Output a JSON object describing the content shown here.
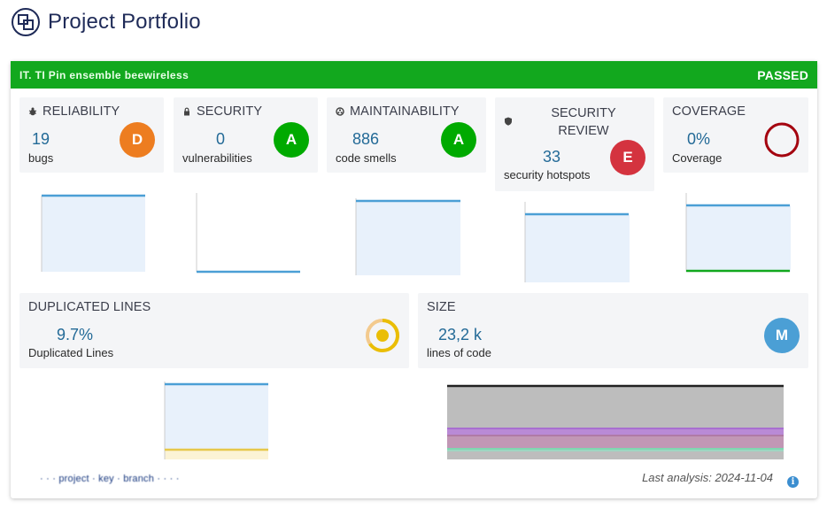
{
  "header": {
    "title": "Project Portfolio",
    "logo_icon": "portfolio-logo-icon"
  },
  "quality_gate": {
    "project_name": "IT. TI Pin ensemble beewireless",
    "status": "PASSED",
    "color": "#12a81e"
  },
  "metrics": {
    "reliability": {
      "title": "RELIABILITY",
      "icon": "bug-icon",
      "value": "19",
      "caption": "bugs",
      "rating": "D",
      "rating_color": "#ed7d20"
    },
    "security": {
      "title": "SECURITY",
      "icon": "lock-icon",
      "value": "0",
      "caption": "vulnerabilities",
      "rating": "A",
      "rating_color": "#00aa00"
    },
    "maintainability": {
      "title": "MAINTAINABILITY",
      "icon": "maintainability-icon",
      "value": "886",
      "caption": "code smells",
      "rating": "A",
      "rating_color": "#00aa00"
    },
    "security_review": {
      "title_line1": "SECURITY",
      "title_line2": "REVIEW",
      "icon": "shield-icon",
      "value": "33",
      "caption": "security hotspots",
      "rating": "E",
      "rating_color": "#d4333f"
    },
    "coverage": {
      "title": "COVERAGE",
      "value": "0%",
      "caption": "Coverage",
      "gauge_color": "#a4030f",
      "gauge_fill": 0
    },
    "duplicated_lines": {
      "title": "DUPLICATED LINES",
      "value": "9.7%",
      "caption": "Duplicated Lines",
      "donut_color": "#eabe06",
      "donut_fill": 0.097
    },
    "size": {
      "title": "SIZE",
      "value": "23,2 k",
      "caption": "lines of code",
      "rating": "M",
      "rating_color": "#4b9fd5"
    }
  },
  "footer": {
    "blurred_link": "· · · project · key · branch · · · ·",
    "last_analysis": "Last analysis: 2024-11-04",
    "info_icon": "info-icon"
  },
  "colors": {
    "accent": "#236a97",
    "chart_line": "#4b9fd5",
    "chart_fill": "#e8f1fb"
  }
}
